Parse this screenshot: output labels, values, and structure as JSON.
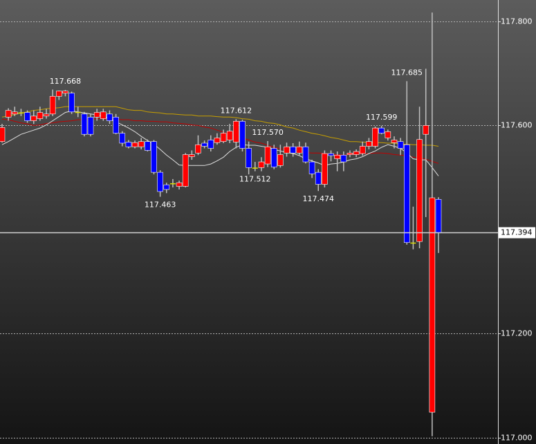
{
  "chart_data": {
    "type": "candlestick",
    "ylim": [
      116.988,
      117.841
    ],
    "yticks": [
      {
        "value": 117.8,
        "label": "117.800"
      },
      {
        "value": 117.6,
        "label": "117.600"
      },
      {
        "value": 117.2,
        "label": "117.200"
      },
      {
        "value": 117.0,
        "label": "117.000"
      }
    ],
    "grid": true,
    "up_color": "#ff0000",
    "down_color": "#0000ff",
    "doji_color": "#e0e000",
    "wick_color": "#c0c0c0",
    "open": [
      117.569,
      117.616,
      117.622,
      117.625,
      117.625,
      117.609,
      117.613,
      117.618,
      117.622,
      117.656,
      117.662,
      117.662,
      117.626,
      117.622,
      117.616,
      117.616,
      117.613,
      117.622,
      117.616,
      117.585,
      117.568,
      117.559,
      117.559,
      117.569,
      117.569,
      117.51,
      117.486,
      117.489,
      117.483,
      117.483,
      117.54,
      117.547,
      117.566,
      117.572,
      117.567,
      117.569,
      117.572,
      117.568,
      117.608,
      117.556,
      117.519,
      117.519,
      117.526,
      117.556,
      117.523,
      117.547,
      117.559,
      117.547,
      117.559,
      117.53,
      117.51,
      117.487,
      117.546,
      117.536,
      117.543,
      117.544,
      117.544,
      117.546,
      117.56,
      117.56,
      117.595,
      117.576,
      117.567,
      117.569,
      117.563,
      117.375,
      117.377,
      117.583,
      117.049,
      117.458
    ],
    "high": [
      117.603,
      117.633,
      117.636,
      117.632,
      117.629,
      117.629,
      117.636,
      117.632,
      117.669,
      117.667,
      117.668,
      117.665,
      117.636,
      117.626,
      117.622,
      117.632,
      117.632,
      117.629,
      117.622,
      117.589,
      117.572,
      117.571,
      117.576,
      117.573,
      117.572,
      117.514,
      117.49,
      117.497,
      117.494,
      117.547,
      117.552,
      117.581,
      117.571,
      117.581,
      117.585,
      117.592,
      117.603,
      117.612,
      117.611,
      117.569,
      117.53,
      117.539,
      117.57,
      117.563,
      117.563,
      117.567,
      117.566,
      117.569,
      117.567,
      117.534,
      117.516,
      117.552,
      117.552,
      117.55,
      117.55,
      117.552,
      117.554,
      117.569,
      117.576,
      117.598,
      117.599,
      117.592,
      117.579,
      117.576,
      117.685,
      117.444,
      117.636,
      117.709,
      117.817,
      117.462
    ],
    "low": [
      117.567,
      117.609,
      117.618,
      117.618,
      117.605,
      117.603,
      117.609,
      117.613,
      117.618,
      117.649,
      117.656,
      117.622,
      117.616,
      117.579,
      117.579,
      117.609,
      117.609,
      117.603,
      117.583,
      117.56,
      117.556,
      117.556,
      117.554,
      117.55,
      117.506,
      117.463,
      117.47,
      117.481,
      117.477,
      117.481,
      117.534,
      117.543,
      117.556,
      117.55,
      117.563,
      117.566,
      117.566,
      117.556,
      117.55,
      117.506,
      117.512,
      117.512,
      117.52,
      117.516,
      117.519,
      117.54,
      117.54,
      117.543,
      117.527,
      117.499,
      117.474,
      117.481,
      117.531,
      117.512,
      117.512,
      117.539,
      117.539,
      117.542,
      117.554,
      117.556,
      117.583,
      117.571,
      117.556,
      117.543,
      117.371,
      117.362,
      117.364,
      117.424,
      117.003,
      117.355
    ],
    "close": [
      117.596,
      117.629,
      117.626,
      117.625,
      117.609,
      117.618,
      117.625,
      117.622,
      117.656,
      117.666,
      117.666,
      117.626,
      117.626,
      117.583,
      117.583,
      117.625,
      117.626,
      117.609,
      117.585,
      117.566,
      117.559,
      117.567,
      117.569,
      117.552,
      117.51,
      117.473,
      117.477,
      117.489,
      117.49,
      117.544,
      117.544,
      117.563,
      117.56,
      117.556,
      117.576,
      117.585,
      117.589,
      117.608,
      117.556,
      117.519,
      117.519,
      117.53,
      117.559,
      117.52,
      117.544,
      117.559,
      117.547,
      117.559,
      117.53,
      117.507,
      117.487,
      117.546,
      117.542,
      117.543,
      117.53,
      117.547,
      117.55,
      117.56,
      117.569,
      117.595,
      117.585,
      117.588,
      117.572,
      117.556,
      117.375,
      117.375,
      117.573,
      117.6,
      117.461,
      117.394
    ],
    "high_labels": [
      null,
      null,
      null,
      null,
      null,
      null,
      null,
      null,
      null,
      null,
      "117.668",
      null,
      null,
      null,
      null,
      null,
      null,
      null,
      null,
      null,
      null,
      null,
      null,
      null,
      null,
      null,
      null,
      null,
      null,
      null,
      null,
      null,
      null,
      null,
      null,
      null,
      null,
      "117.612",
      null,
      null,
      null,
      null,
      "117.570",
      null,
      null,
      null,
      null,
      null,
      null,
      null,
      null,
      null,
      null,
      null,
      null,
      null,
      null,
      null,
      null,
      null,
      "117.599",
      null,
      null,
      null,
      "117.685",
      null,
      null,
      null,
      null,
      null
    ],
    "low_labels": [
      null,
      null,
      null,
      null,
      null,
      null,
      null,
      null,
      null,
      null,
      null,
      null,
      null,
      null,
      null,
      null,
      null,
      null,
      null,
      null,
      null,
      null,
      null,
      null,
      null,
      "117.463",
      null,
      null,
      null,
      null,
      null,
      null,
      null,
      null,
      null,
      null,
      null,
      null,
      null,
      null,
      "117.512",
      null,
      null,
      null,
      null,
      null,
      null,
      null,
      null,
      null,
      "117.474",
      null,
      null,
      null,
      null,
      null,
      null,
      null,
      null,
      null,
      null,
      null,
      null,
      null,
      null,
      null,
      null,
      null,
      null,
      null
    ],
    "lines": [
      {
        "color": "#c8a000",
        "values": [
          117.616,
          117.618,
          117.621,
          117.624,
          117.626,
          117.629,
          117.63,
          117.632,
          117.633,
          117.634,
          117.636,
          117.636,
          117.636,
          117.636,
          117.636,
          117.636,
          117.636,
          117.636,
          117.636,
          117.633,
          117.63,
          117.629,
          117.629,
          117.626,
          117.625,
          117.624,
          117.622,
          117.622,
          117.621,
          117.62,
          117.62,
          117.618,
          117.618,
          117.618,
          117.617,
          117.616,
          117.616,
          117.615,
          117.613,
          117.612,
          117.609,
          117.608,
          117.605,
          117.604,
          117.601,
          117.597,
          117.595,
          117.591,
          117.588,
          117.585,
          117.583,
          117.58,
          117.577,
          117.575,
          117.572,
          117.569,
          117.569,
          117.568,
          117.568,
          117.567,
          117.567,
          117.566,
          117.566,
          117.564,
          117.564,
          117.563,
          117.563,
          117.562,
          117.562,
          117.56
        ]
      },
      {
        "color": "#c00000",
        "values": [
          117.612,
          117.611,
          117.608,
          117.605,
          117.603,
          117.6,
          117.601,
          117.604,
          117.605,
          117.607,
          117.608,
          117.609,
          117.611,
          117.611,
          117.612,
          117.613,
          117.613,
          117.612,
          117.612,
          117.611,
          117.611,
          117.609,
          117.609,
          117.608,
          117.608,
          117.607,
          117.607,
          117.605,
          117.604,
          117.603,
          117.601,
          117.6,
          117.597,
          117.595,
          117.591,
          117.587,
          117.583,
          117.58,
          117.576,
          117.572,
          117.568,
          117.566,
          117.562,
          117.558,
          117.555,
          117.554,
          117.552,
          117.55,
          117.548,
          117.547,
          117.547,
          117.546,
          117.544,
          117.544,
          117.543,
          117.544,
          117.544,
          117.546,
          117.546,
          117.547,
          117.547,
          117.546,
          117.544,
          117.543,
          117.542,
          117.539,
          117.538,
          117.535,
          117.531,
          117.527
        ]
      },
      {
        "color": "#e0e0e0",
        "values": [
          117.563,
          117.569,
          117.576,
          117.583,
          117.587,
          117.591,
          117.595,
          117.601,
          117.609,
          117.617,
          117.625,
          117.628,
          117.626,
          117.624,
          117.622,
          117.62,
          117.617,
          117.613,
          117.607,
          117.601,
          117.595,
          117.588,
          117.579,
          117.571,
          117.564,
          117.554,
          117.543,
          117.534,
          117.524,
          117.523,
          117.523,
          117.523,
          117.523,
          117.526,
          117.532,
          117.539,
          117.55,
          117.558,
          117.563,
          117.562,
          117.562,
          117.56,
          117.558,
          117.554,
          117.551,
          117.548,
          117.546,
          117.542,
          117.536,
          117.532,
          117.528,
          117.523,
          117.526,
          117.527,
          117.53,
          117.534,
          117.536,
          117.54,
          117.546,
          117.551,
          117.558,
          117.563,
          117.56,
          117.556,
          117.547,
          117.536,
          117.534,
          117.534,
          117.519,
          117.503
        ]
      }
    ],
    "last": {
      "value": 117.394,
      "label": "117.394"
    }
  }
}
